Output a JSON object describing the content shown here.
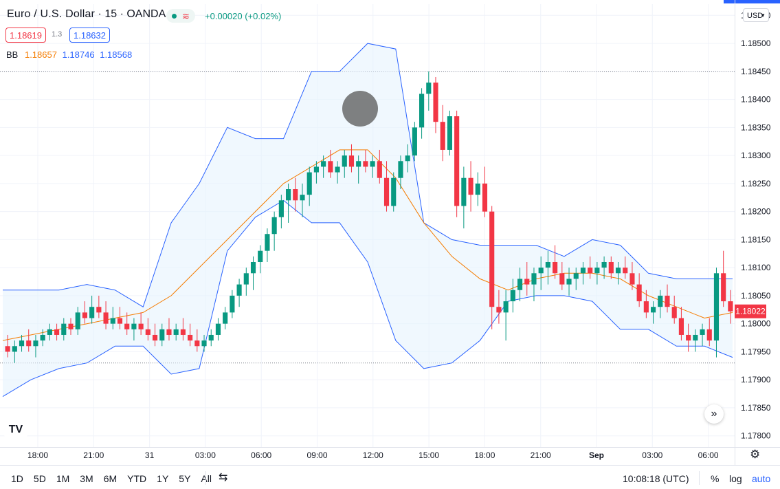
{
  "header": {
    "symbol": "Euro / U.S. Dollar",
    "interval": "15",
    "exchange": "OANDA",
    "change": "+0.00020 (+0.02%)",
    "bid": "1.18619",
    "spread": "1.3",
    "ask": "1.18632",
    "market_status_icon": "dot-icon",
    "wave_icon": "wave-icon"
  },
  "indicator": {
    "name": "BB",
    "basis": "1.18657",
    "upper": "1.18746",
    "lower": "1.18568"
  },
  "currency_label": "USD",
  "last_price_label": "1.18022",
  "bottom_bar": {
    "ranges": [
      "1D",
      "5D",
      "1M",
      "3M",
      "6M",
      "YTD",
      "1Y",
      "5Y",
      "All"
    ],
    "clock": "10:08:18 (UTC)",
    "percent": "%",
    "log": "log",
    "auto": "auto"
  },
  "colors": {
    "up": "#089981",
    "down": "#f23645",
    "basis": "#f57c00",
    "band": "#2962ff",
    "fill": "#e3f2fd"
  },
  "chart_data": {
    "type": "candlestick",
    "y_range": [
      1.1778,
      1.1857
    ],
    "y_ticks": [
      "1.18550",
      "1.18500",
      "1.18450",
      "1.18400",
      "1.18350",
      "1.18300",
      "1.18250",
      "1.18200",
      "1.18150",
      "1.18100",
      "1.18050",
      "1.18000",
      "1.17950",
      "1.17900",
      "1.17850",
      "1.17800"
    ],
    "x_ticks": [
      "18:00",
      "21:00",
      "31",
      "03:00",
      "06:00",
      "09:00",
      "12:00",
      "15:00",
      "18:00",
      "21:00",
      "Sep",
      "03:00",
      "06:00"
    ],
    "horizontal_lines": [
      1.1845,
      1.1793
    ],
    "last_price": 1.18022,
    "candles": [
      [
        1.1796,
        1.1798,
        1.1794,
        1.1795
      ],
      [
        1.1795,
        1.1797,
        1.1793,
        1.1796
      ],
      [
        1.1796,
        1.1798,
        1.1795,
        1.1797
      ],
      [
        1.1797,
        1.1799,
        1.1795,
        1.1796
      ],
      [
        1.1796,
        1.1798,
        1.1794,
        1.1797
      ],
      [
        1.1797,
        1.1799,
        1.1796,
        1.1798
      ],
      [
        1.1798,
        1.18,
        1.1797,
        1.1799
      ],
      [
        1.1799,
        1.18,
        1.1797,
        1.1798
      ],
      [
        1.1798,
        1.1801,
        1.1797,
        1.18
      ],
      [
        1.18,
        1.1801,
        1.1798,
        1.1799
      ],
      [
        1.1799,
        1.1803,
        1.1798,
        1.1802
      ],
      [
        1.1802,
        1.1804,
        1.18,
        1.1801
      ],
      [
        1.1801,
        1.1805,
        1.18,
        1.1803
      ],
      [
        1.1803,
        1.1805,
        1.1801,
        1.1802
      ],
      [
        1.1802,
        1.1804,
        1.1799,
        1.18
      ],
      [
        1.18,
        1.1803,
        1.1799,
        1.1801
      ],
      [
        1.1801,
        1.1803,
        1.1799,
        1.18
      ],
      [
        1.18,
        1.1802,
        1.1798,
        1.1799
      ],
      [
        1.1799,
        1.1801,
        1.1797,
        1.18
      ],
      [
        1.18,
        1.1802,
        1.1798,
        1.1799
      ],
      [
        1.1799,
        1.1801,
        1.1797,
        1.1798
      ],
      [
        1.1798,
        1.18,
        1.1796,
        1.1797
      ],
      [
        1.1797,
        1.18,
        1.1796,
        1.1799
      ],
      [
        1.1799,
        1.1801,
        1.1797,
        1.1798
      ],
      [
        1.1798,
        1.18,
        1.1797,
        1.1799
      ],
      [
        1.1799,
        1.1801,
        1.1797,
        1.1798
      ],
      [
        1.1798,
        1.18,
        1.1796,
        1.1797
      ],
      [
        1.1797,
        1.1799,
        1.1795,
        1.1796
      ],
      [
        1.1796,
        1.1798,
        1.1795,
        1.1797
      ],
      [
        1.1797,
        1.1799,
        1.1796,
        1.1798
      ],
      [
        1.1798,
        1.1801,
        1.1797,
        1.18
      ],
      [
        1.18,
        1.1803,
        1.1799,
        1.1802
      ],
      [
        1.1802,
        1.1806,
        1.1801,
        1.1805
      ],
      [
        1.1805,
        1.1808,
        1.1803,
        1.1807
      ],
      [
        1.1807,
        1.181,
        1.1805,
        1.1809
      ],
      [
        1.1809,
        1.1812,
        1.1806,
        1.1811
      ],
      [
        1.1811,
        1.1814,
        1.1809,
        1.1813
      ],
      [
        1.1813,
        1.1817,
        1.1811,
        1.1816
      ],
      [
        1.1816,
        1.182,
        1.1813,
        1.1819
      ],
      [
        1.1819,
        1.1823,
        1.1817,
        1.1822
      ],
      [
        1.1822,
        1.1825,
        1.1818,
        1.1824
      ],
      [
        1.1824,
        1.1826,
        1.182,
        1.1822
      ],
      [
        1.1822,
        1.1825,
        1.1819,
        1.1823
      ],
      [
        1.1823,
        1.1828,
        1.1821,
        1.1827
      ],
      [
        1.1827,
        1.1829,
        1.1825,
        1.1828
      ],
      [
        1.1828,
        1.183,
        1.1826,
        1.1829
      ],
      [
        1.1829,
        1.1831,
        1.1826,
        1.1827
      ],
      [
        1.1827,
        1.1829,
        1.1825,
        1.1828
      ],
      [
        1.1828,
        1.1831,
        1.1826,
        1.183
      ],
      [
        1.183,
        1.1832,
        1.1827,
        1.1828
      ],
      [
        1.1828,
        1.183,
        1.1825,
        1.1829
      ],
      [
        1.1829,
        1.1831,
        1.1827,
        1.1828
      ],
      [
        1.1828,
        1.183,
        1.1826,
        1.1829
      ],
      [
        1.1829,
        1.1831,
        1.1825,
        1.1826
      ],
      [
        1.1826,
        1.1829,
        1.182,
        1.1821
      ],
      [
        1.1821,
        1.1827,
        1.182,
        1.1826
      ],
      [
        1.1826,
        1.183,
        1.1824,
        1.1829
      ],
      [
        1.1829,
        1.1832,
        1.1827,
        1.183
      ],
      [
        1.183,
        1.1836,
        1.1829,
        1.1835
      ],
      [
        1.1835,
        1.1842,
        1.1833,
        1.1841
      ],
      [
        1.1841,
        1.1845,
        1.1838,
        1.1843
      ],
      [
        1.1843,
        1.1844,
        1.1834,
        1.1836
      ],
      [
        1.1836,
        1.1839,
        1.1829,
        1.1831
      ],
      [
        1.1831,
        1.1838,
        1.183,
        1.1837
      ],
      [
        1.1837,
        1.1838,
        1.1819,
        1.1821
      ],
      [
        1.1821,
        1.1828,
        1.1817,
        1.1826
      ],
      [
        1.1826,
        1.1829,
        1.182,
        1.1823
      ],
      [
        1.1823,
        1.1827,
        1.1821,
        1.1825
      ],
      [
        1.1825,
        1.1828,
        1.1819,
        1.182
      ],
      [
        1.182,
        1.1821,
        1.1799,
        1.1803
      ],
      [
        1.1803,
        1.1806,
        1.18,
        1.1802
      ],
      [
        1.1802,
        1.1806,
        1.1797,
        1.1804
      ],
      [
        1.1804,
        1.1808,
        1.1802,
        1.1806
      ],
      [
        1.1806,
        1.181,
        1.1804,
        1.1808
      ],
      [
        1.1808,
        1.1811,
        1.1805,
        1.1807
      ],
      [
        1.1807,
        1.181,
        1.1804,
        1.1809
      ],
      [
        1.1809,
        1.1812,
        1.1806,
        1.181
      ],
      [
        1.181,
        1.1813,
        1.1807,
        1.1811
      ],
      [
        1.1811,
        1.1814,
        1.1808,
        1.1809
      ],
      [
        1.1809,
        1.1811,
        1.1806,
        1.1807
      ],
      [
        1.1807,
        1.181,
        1.1805,
        1.1808
      ],
      [
        1.1808,
        1.181,
        1.1806,
        1.1809
      ],
      [
        1.1809,
        1.1811,
        1.1807,
        1.181
      ],
      [
        1.181,
        1.1812,
        1.1808,
        1.1809
      ],
      [
        1.1809,
        1.1811,
        1.1807,
        1.181
      ],
      [
        1.181,
        1.1812,
        1.1808,
        1.1811
      ],
      [
        1.1811,
        1.1812,
        1.1808,
        1.1809
      ],
      [
        1.1809,
        1.1811,
        1.1807,
        1.181
      ],
      [
        1.181,
        1.1812,
        1.1808,
        1.1809
      ],
      [
        1.1809,
        1.1811,
        1.1806,
        1.1807
      ],
      [
        1.1807,
        1.1809,
        1.1803,
        1.1804
      ],
      [
        1.1804,
        1.1806,
        1.1801,
        1.1802
      ],
      [
        1.1802,
        1.1804,
        1.18,
        1.1803
      ],
      [
        1.1803,
        1.1806,
        1.1801,
        1.1805
      ],
      [
        1.1805,
        1.1807,
        1.1802,
        1.1803
      ],
      [
        1.1803,
        1.1805,
        1.18,
        1.1801
      ],
      [
        1.1801,
        1.1803,
        1.1797,
        1.1798
      ],
      [
        1.1798,
        1.18,
        1.1795,
        1.1797
      ],
      [
        1.1797,
        1.1799,
        1.1795,
        1.1798
      ],
      [
        1.1798,
        1.18,
        1.1796,
        1.1799
      ],
      [
        1.1799,
        1.1801,
        1.1796,
        1.1797
      ],
      [
        1.1797,
        1.181,
        1.1794,
        1.1809
      ],
      [
        1.1809,
        1.1813,
        1.1803,
        1.1804
      ],
      [
        1.1804,
        1.1806,
        1.18,
        1.18022
      ]
    ],
    "basis": [
      1.1797,
      1.1798,
      1.1799,
      1.18,
      1.1801,
      1.1802,
      1.1805,
      1.181,
      1.1815,
      1.182,
      1.1825,
      1.1828,
      1.1831,
      1.1831,
      1.1826,
      1.1818,
      1.1812,
      1.1808,
      1.1806,
      1.1808,
      1.1809,
      1.1809,
      1.1808,
      1.1805,
      1.1803,
      1.1801,
      1.1802
    ],
    "upper": [
      1.1806,
      1.1806,
      1.1806,
      1.1807,
      1.1806,
      1.1803,
      1.1818,
      1.1825,
      1.1835,
      1.1833,
      1.1833,
      1.1845,
      1.1845,
      1.185,
      1.1849,
      1.1818,
      1.1815,
      1.1814,
      1.1814,
      1.1814,
      1.1812,
      1.1815,
      1.1814,
      1.1809,
      1.1808,
      1.1808,
      1.1808
    ],
    "lower": [
      1.1787,
      1.179,
      1.1792,
      1.1793,
      1.1796,
      1.1796,
      1.1791,
      1.1792,
      1.1813,
      1.1819,
      1.1822,
      1.1818,
      1.1818,
      1.1811,
      1.1797,
      1.1792,
      1.1793,
      1.1797,
      1.1804,
      1.1805,
      1.1805,
      1.1804,
      1.1799,
      1.1799,
      1.1796,
      1.1796,
      1.1794
    ]
  }
}
